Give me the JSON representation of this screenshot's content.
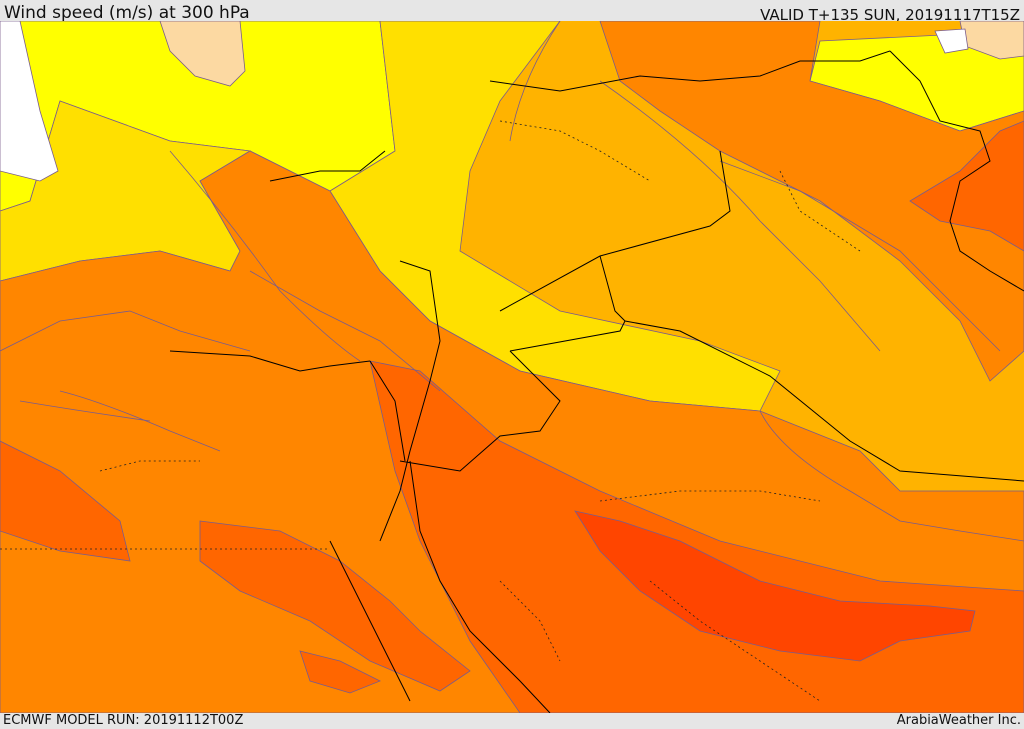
{
  "header": {
    "title": "Wind speed (m/s) at 300 hPa",
    "valid_time": "VALID T+135 SUN, 20191117T15Z"
  },
  "footer": {
    "model_run": "ECMWF MODEL RUN: 20191112T00Z",
    "credit": "ArabiaWeather Inc."
  },
  "map": {
    "field": "wind speed 300 hPa",
    "palette": {
      "white": "#ffffff",
      "peach": "#fcd9a2",
      "yellow": "#ffff00",
      "gold": "#ffe000",
      "amber": "#ffb300",
      "orange": "#ff8600",
      "dark_orange": "#ff6600",
      "red_orange": "#ff4500",
      "contour_line": "#7a5c8c",
      "border_line": "#000000"
    }
  }
}
